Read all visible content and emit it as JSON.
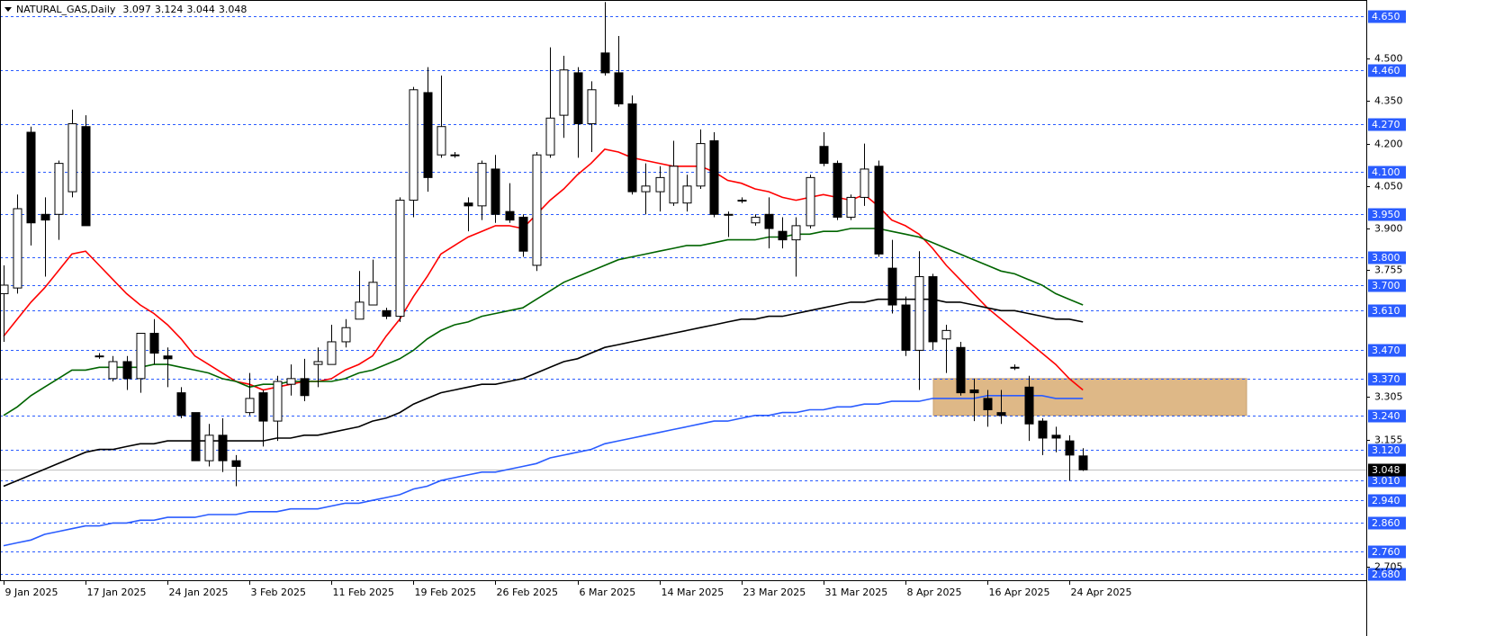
{
  "chart_data": {
    "type": "candlestick",
    "title": "NATURAL_GAS,Daily",
    "categories": [
      "9 Jan 2025",
      null,
      null,
      null,
      null,
      null,
      "17 Jan 2025",
      null,
      null,
      null,
      null,
      null,
      "24 Jan 2025",
      null,
      null,
      null,
      null,
      null,
      "3 Feb 2025",
      null,
      null,
      null,
      null,
      null,
      "11 Feb 2025",
      null,
      null,
      null,
      null,
      null,
      "19 Feb 2025",
      null,
      null,
      null,
      null,
      null,
      "26 Feb 2025",
      null,
      null,
      null,
      null,
      null,
      "6 Mar 2025",
      null,
      null,
      null,
      null,
      null,
      "14 Mar 2025",
      null,
      null,
      null,
      null,
      null,
      "23 Mar 2025",
      null,
      null,
      null,
      null,
      null,
      "31 Mar 2025",
      null,
      null,
      null,
      null,
      null,
      "8 Apr 2025",
      null,
      null,
      null,
      null,
      null,
      "16 Apr 2025",
      null,
      null,
      null,
      null,
      null,
      "24 Apr 2025",
      null
    ],
    "open": [
      3.67,
      3.69,
      4.24,
      3.95,
      3.95,
      4.03,
      4.26,
      3.45,
      3.37,
      3.43,
      3.37,
      3.53,
      3.45,
      3.32,
      3.25,
      3.08,
      3.17,
      3.08,
      3.25,
      3.32,
      3.22,
      3.35,
      3.37,
      3.42,
      3.42,
      3.5,
      3.58,
      3.63,
      3.61,
      3.59,
      4.0,
      4.38,
      4.16,
      4.16,
      3.99,
      3.98,
      4.11,
      3.96,
      3.94,
      3.77,
      4.16,
      4.3,
      4.45,
      4.27,
      4.52,
      4.45,
      4.34,
      4.03,
      4.03,
      3.99,
      3.99,
      4.05,
      4.21,
      3.95,
      4.0,
      3.92,
      3.95,
      3.89,
      3.86,
      3.91,
      4.19,
      4.13,
      3.94,
      4.01,
      4.12,
      3.76,
      3.63,
      3.47,
      3.73,
      3.51,
      3.48,
      3.33,
      3.3,
      3.25,
      3.41,
      3.34,
      3.22,
      3.17,
      3.15,
      3.097
    ],
    "high": [
      3.77,
      4.02,
      4.26,
      4.01,
      4.14,
      4.32,
      4.3,
      3.46,
      3.45,
      3.45,
      3.53,
      3.58,
      3.48,
      3.34,
      3.25,
      3.21,
      3.23,
      3.1,
      3.39,
      3.33,
      3.38,
      3.42,
      3.44,
      3.48,
      3.56,
      3.58,
      3.75,
      3.79,
      3.62,
      4.01,
      4.4,
      4.47,
      4.44,
      4.17,
      4.01,
      4.14,
      4.16,
      4.06,
      3.95,
      4.17,
      4.54,
      4.51,
      4.47,
      4.42,
      4.7,
      4.58,
      4.37,
      4.13,
      4.12,
      4.21,
      4.09,
      4.25,
      4.24,
      3.96,
      4.01,
      3.95,
      4.01,
      3.94,
      3.94,
      4.09,
      4.24,
      4.14,
      4.02,
      4.2,
      4.14,
      3.86,
      3.66,
      3.82,
      3.74,
      3.56,
      3.5,
      3.37,
      3.33,
      3.33,
      3.42,
      3.38,
      3.23,
      3.2,
      3.17,
      3.124
    ],
    "low": [
      3.5,
      3.67,
      3.84,
      3.73,
      3.86,
      4.01,
      3.91,
      3.44,
      3.36,
      3.33,
      3.32,
      3.42,
      3.34,
      3.23,
      3.08,
      3.06,
      3.04,
      2.99,
      3.24,
      3.13,
      3.15,
      3.31,
      3.29,
      3.34,
      3.42,
      3.48,
      3.58,
      3.63,
      3.58,
      3.57,
      3.94,
      4.03,
      4.15,
      4.15,
      3.89,
      3.93,
      3.92,
      3.92,
      3.8,
      3.75,
      4.15,
      4.22,
      4.15,
      4.17,
      4.44,
      4.33,
      4.02,
      3.95,
      3.96,
      3.98,
      3.96,
      4.04,
      3.94,
      3.87,
      3.99,
      3.91,
      3.83,
      3.83,
      3.73,
      3.9,
      4.12,
      3.93,
      3.93,
      3.98,
      3.8,
      3.6,
      3.45,
      3.33,
      3.47,
      3.39,
      3.31,
      3.22,
      3.2,
      3.21,
      3.4,
      3.15,
      3.1,
      3.11,
      3.01,
      3.044
    ],
    "close": [
      3.7,
      3.97,
      3.92,
      3.93,
      4.13,
      4.27,
      3.91,
      3.45,
      3.43,
      3.37,
      3.53,
      3.46,
      3.44,
      3.24,
      3.08,
      3.17,
      3.08,
      3.06,
      3.3,
      3.22,
      3.36,
      3.37,
      3.31,
      3.43,
      3.5,
      3.55,
      3.64,
      3.71,
      3.59,
      4.0,
      4.39,
      4.08,
      4.26,
      4.16,
      3.98,
      4.13,
      3.95,
      3.93,
      3.82,
      4.16,
      4.29,
      4.46,
      4.27,
      4.39,
      4.45,
      4.34,
      4.03,
      4.05,
      4.08,
      4.12,
      4.05,
      4.2,
      3.95,
      3.95,
      4.0,
      3.94,
      3.9,
      3.86,
      3.91,
      4.08,
      4.13,
      3.94,
      4.01,
      4.11,
      3.81,
      3.63,
      3.47,
      3.73,
      3.5,
      3.54,
      3.32,
      3.32,
      3.26,
      3.24,
      3.41,
      3.21,
      3.16,
      3.16,
      3.1,
      3.048
    ],
    "up_color": "#ffffff",
    "down_color": "#000000",
    "series": [
      {
        "color": "#ff0000",
        "values": [
          3.52,
          3.58,
          3.64,
          3.69,
          3.75,
          3.81,
          3.82,
          3.77,
          3.72,
          3.67,
          3.63,
          3.6,
          3.56,
          3.51,
          3.45,
          3.42,
          3.39,
          3.36,
          3.35,
          3.33,
          3.34,
          3.35,
          3.36,
          3.36,
          3.37,
          3.4,
          3.42,
          3.45,
          3.52,
          3.58,
          3.66,
          3.73,
          3.81,
          3.84,
          3.87,
          3.89,
          3.91,
          3.91,
          3.9,
          3.95,
          4.0,
          4.04,
          4.09,
          4.13,
          4.18,
          4.17,
          4.15,
          4.14,
          4.13,
          4.12,
          4.12,
          4.12,
          4.1,
          4.07,
          4.06,
          4.04,
          4.03,
          4.01,
          4.0,
          4.01,
          4.02,
          4.01,
          4.0,
          4.02,
          3.98,
          3.93,
          3.91,
          3.88,
          3.83,
          3.77,
          3.72,
          3.67,
          3.62,
          3.58,
          3.54,
          3.5,
          3.46,
          3.42,
          3.37,
          3.33
        ]
      },
      {
        "color": "#006400",
        "values": [
          3.24,
          3.27,
          3.31,
          3.34,
          3.37,
          3.4,
          3.4,
          3.41,
          3.41,
          3.41,
          3.41,
          3.42,
          3.42,
          3.41,
          3.4,
          3.39,
          3.37,
          3.36,
          3.34,
          3.35,
          3.35,
          3.36,
          3.36,
          3.36,
          3.36,
          3.37,
          3.39,
          3.4,
          3.42,
          3.44,
          3.47,
          3.51,
          3.54,
          3.56,
          3.57,
          3.59,
          3.6,
          3.61,
          3.62,
          3.65,
          3.68,
          3.71,
          3.73,
          3.75,
          3.77,
          3.79,
          3.8,
          3.81,
          3.82,
          3.83,
          3.84,
          3.84,
          3.85,
          3.86,
          3.86,
          3.86,
          3.87,
          3.87,
          3.88,
          3.88,
          3.89,
          3.89,
          3.9,
          3.9,
          3.9,
          3.89,
          3.88,
          3.87,
          3.85,
          3.83,
          3.81,
          3.79,
          3.77,
          3.75,
          3.74,
          3.72,
          3.7,
          3.67,
          3.65,
          3.63
        ]
      },
      {
        "color": "#000000",
        "values": [
          2.99,
          3.01,
          3.03,
          3.05,
          3.07,
          3.09,
          3.11,
          3.12,
          3.12,
          3.13,
          3.14,
          3.14,
          3.15,
          3.15,
          3.15,
          3.15,
          3.15,
          3.15,
          3.15,
          3.15,
          3.16,
          3.16,
          3.17,
          3.17,
          3.18,
          3.19,
          3.2,
          3.22,
          3.23,
          3.25,
          3.28,
          3.3,
          3.32,
          3.33,
          3.34,
          3.35,
          3.35,
          3.36,
          3.37,
          3.39,
          3.41,
          3.43,
          3.44,
          3.46,
          3.48,
          3.49,
          3.5,
          3.51,
          3.52,
          3.53,
          3.54,
          3.55,
          3.56,
          3.57,
          3.58,
          3.58,
          3.59,
          3.59,
          3.6,
          3.61,
          3.62,
          3.63,
          3.64,
          3.64,
          3.65,
          3.65,
          3.65,
          3.65,
          3.65,
          3.64,
          3.64,
          3.63,
          3.62,
          3.61,
          3.61,
          3.6,
          3.59,
          3.58,
          3.58,
          3.57
        ]
      },
      {
        "color": "#2a5cff",
        "values": [
          2.78,
          2.79,
          2.8,
          2.82,
          2.83,
          2.84,
          2.85,
          2.85,
          2.86,
          2.86,
          2.87,
          2.87,
          2.88,
          2.88,
          2.88,
          2.89,
          2.89,
          2.89,
          2.9,
          2.9,
          2.9,
          2.91,
          2.91,
          2.91,
          2.92,
          2.93,
          2.93,
          2.94,
          2.95,
          2.96,
          2.98,
          2.99,
          3.01,
          3.02,
          3.03,
          3.04,
          3.04,
          3.05,
          3.06,
          3.07,
          3.09,
          3.1,
          3.11,
          3.12,
          3.14,
          3.15,
          3.16,
          3.17,
          3.18,
          3.19,
          3.2,
          3.21,
          3.22,
          3.22,
          3.23,
          3.24,
          3.24,
          3.25,
          3.25,
          3.26,
          3.26,
          3.27,
          3.27,
          3.28,
          3.28,
          3.29,
          3.29,
          3.29,
          3.3,
          3.3,
          3.3,
          3.3,
          3.31,
          3.31,
          3.31,
          3.31,
          3.31,
          3.3,
          3.3,
          3.3
        ]
      }
    ],
    "ylim": [
      2.658,
      4.707
    ],
    "yticks": [
      {
        "value": 4.5,
        "label": "4.500"
      },
      {
        "value": 4.35,
        "label": "4.350"
      },
      {
        "value": 4.2,
        "label": "4.200"
      },
      {
        "value": 4.05,
        "label": "4.050"
      },
      {
        "value": 3.9,
        "label": "3.900"
      },
      3.755,
      3.305,
      3.155,
      2.705
    ],
    "levels": [
      {
        "value": 4.65,
        "label": "4.650"
      },
      {
        "value": 4.46,
        "label": "4.460"
      },
      {
        "value": 4.27,
        "label": "4.270"
      },
      {
        "value": 4.1,
        "label": "4.100"
      },
      {
        "value": 3.95,
        "label": "3.950"
      },
      {
        "value": 3.8,
        "label": "3.800"
      },
      {
        "value": 3.7,
        "label": "3.700"
      },
      {
        "value": 3.61,
        "label": "3.610"
      },
      {
        "value": 3.47,
        "label": "3.470"
      },
      {
        "value": 3.37,
        "label": "3.370"
      },
      {
        "value": 3.24,
        "label": "3.240"
      },
      {
        "value": 3.12,
        "label": "3.120"
      },
      {
        "value": 3.01,
        "label": "3.010"
      },
      {
        "value": 2.94,
        "label": "2.940"
      },
      {
        "value": 2.86,
        "label": "2.860"
      },
      {
        "value": 2.76,
        "label": "2.760"
      },
      {
        "value": 2.68,
        "label": "2.680"
      }
    ],
    "level_color": "#2a5cff",
    "zone": {
      "low": 3.24,
      "high": 3.37,
      "color": "#deb887"
    }
  }
}
